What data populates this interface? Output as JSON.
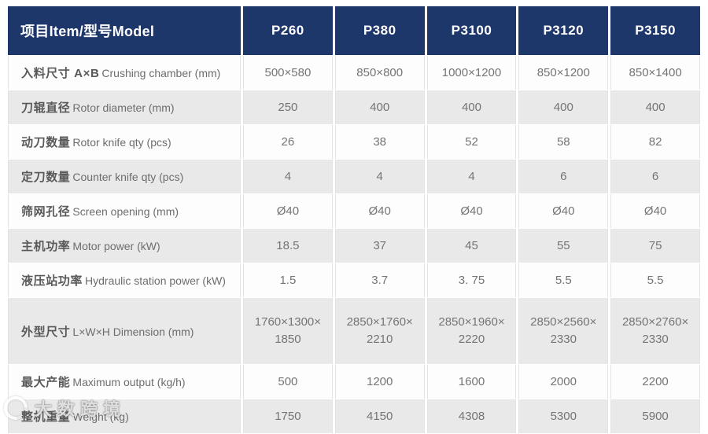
{
  "table": {
    "header": {
      "item_label": "项目Item/型号Model",
      "models": [
        "P260",
        "P380",
        "P3100",
        "P3120",
        "P3150"
      ]
    },
    "rows": [
      {
        "label_zh": "入料尺寸 A×B",
        "label_en": "Crushing chamber (mm)",
        "values": [
          "500×580",
          "850×800",
          "1000×1200",
          "850×1200",
          "850×1400"
        ]
      },
      {
        "label_zh": "刀辊直径",
        "label_en": "Rotor diameter (mm)",
        "values": [
          "250",
          "400",
          "400",
          "400",
          "400"
        ]
      },
      {
        "label_zh": "动刀数量",
        "label_en": "Rotor knife qty (pcs)",
        "values": [
          "26",
          "38",
          "52",
          "58",
          "82"
        ]
      },
      {
        "label_zh": "定刀数量",
        "label_en": "Counter knife qty (pcs)",
        "values": [
          "4",
          "4",
          "4",
          "6",
          "6"
        ]
      },
      {
        "label_zh": "筛网孔径",
        "label_en": "Screen opening (mm)",
        "values": [
          "Ø40",
          "Ø40",
          "Ø40",
          "Ø40",
          "Ø40"
        ]
      },
      {
        "label_zh": "主机功率",
        "label_en": "Motor power  (kW)",
        "values": [
          "18.5",
          "37",
          "45",
          "55",
          "75"
        ]
      },
      {
        "label_zh": "液压站功率",
        "label_en": "Hydraulic station power (kW)",
        "values": [
          "1.5",
          "3.7",
          "3. 75",
          "5.5",
          "5.5"
        ]
      },
      {
        "label_zh": "外型尺寸",
        "label_en": "L×W×H Dimension (mm)",
        "values": [
          "1760×1300×\n1850",
          "2850×1760×\n2210",
          "2850×1960×\n2220",
          "2850×2560×\n2330",
          "2850×2760×\n2330"
        ]
      },
      {
        "label_zh": "最大产能",
        "label_en": "Maximum output (kg/h)",
        "values": [
          "500",
          "1200",
          "1600",
          "2000",
          "2200"
        ]
      },
      {
        "label_zh": "整机重量",
        "label_en": "Weight (kg)",
        "values": [
          "1750",
          "4150",
          "4308",
          "5300",
          "5900"
        ]
      }
    ]
  },
  "watermark": {
    "text": "大数跨境"
  },
  "colors": {
    "header_bg": "#1e376b",
    "row_bg": "#fdfdfd",
    "row_alt_bg": "#e9e9e9",
    "value_text": "#747474"
  }
}
